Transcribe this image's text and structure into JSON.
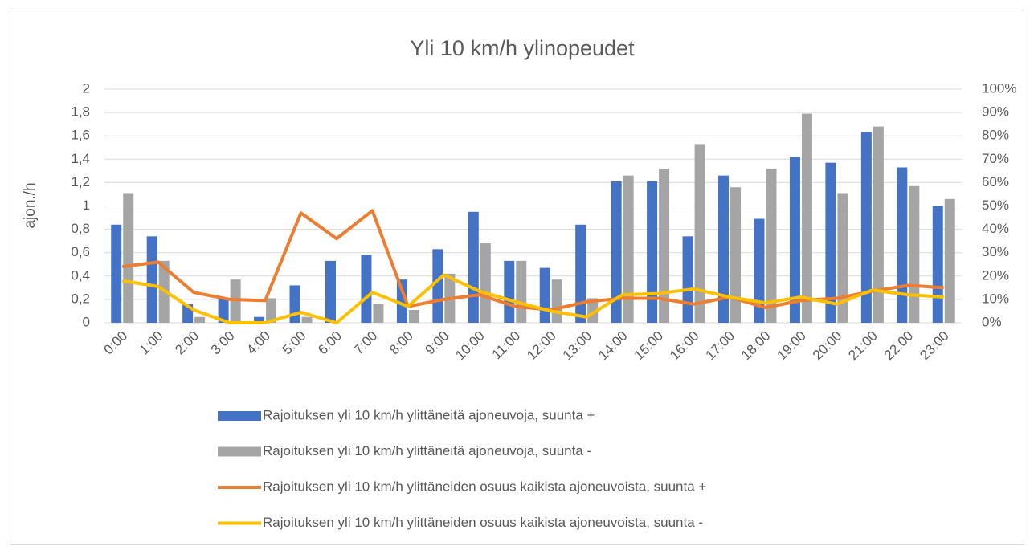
{
  "chart_data": {
    "type": "bar",
    "title": "Yli 10 km/h ylinopeudet",
    "y_label": "ajon./h",
    "categories": [
      "0:00",
      "1:00",
      "2:00",
      "3:00",
      "4:00",
      "5:00",
      "6:00",
      "7:00",
      "8:00",
      "9:00",
      "10:00",
      "11:00",
      "12:00",
      "13:00",
      "14:00",
      "15:00",
      "16:00",
      "17:00",
      "18:00",
      "19:00",
      "20:00",
      "21:00",
      "22:00",
      "23:00"
    ],
    "series": [
      {
        "name": "Rajoituksen yli 10 km/h ylittäneitä ajoneuvoja, suunta +",
        "type": "bar",
        "color": "#4472c4",
        "values": [
          0.84,
          0.74,
          0.16,
          0.21,
          0.05,
          0.32,
          0.53,
          0.58,
          0.37,
          0.63,
          0.95,
          0.53,
          0.47,
          0.84,
          1.21,
          1.21,
          0.74,
          1.26,
          0.89,
          1.42,
          1.37,
          1.63,
          1.33,
          1.0
        ]
      },
      {
        "name": "Rajoituksen yli 10 km/h ylittäneitä ajoneuvoja, suunta -",
        "type": "bar",
        "color": "#a5a5a5",
        "values": [
          1.11,
          0.53,
          0.05,
          0.37,
          0.21,
          0.05,
          0,
          0.16,
          0.11,
          0.42,
          0.68,
          0.53,
          0.37,
          0.21,
          1.26,
          1.32,
          1.53,
          1.16,
          1.32,
          1.79,
          1.11,
          1.68,
          1.17,
          1.06
        ]
      },
      {
        "name": "Rajoituksen yli 10 km/h ylittäneiden osuus kaikista ajoneuvoista, suunta +",
        "type": "line",
        "axis": "y2",
        "color": "#ed7d31",
        "values": [
          24,
          26,
          13,
          10,
          9.5,
          47,
          36,
          48,
          7,
          10,
          12,
          7,
          5.5,
          9,
          10.5,
          10.5,
          8,
          11,
          6.5,
          9.5,
          10.5,
          13.5,
          16,
          15
        ]
      },
      {
        "name": "Rajoituksen yli 10 km/h ylittäneiden osuus kaikista ajoneuvoista, suunta -",
        "type": "line",
        "axis": "y2",
        "color": "#ffc000",
        "values": [
          18,
          15.5,
          5.5,
          0,
          0,
          4.5,
          0,
          13,
          7,
          20.5,
          13.5,
          9,
          5,
          2.5,
          12,
          12.5,
          14.5,
          11,
          8.5,
          11,
          8,
          14,
          12,
          11
        ]
      }
    ],
    "ylim": [
      0,
      2
    ],
    "yticks": [
      0,
      {
        "value": 0.2,
        "label": "0,2"
      },
      {
        "value": 0.4,
        "label": "0,4"
      },
      {
        "value": 0.6,
        "label": "0,6"
      },
      {
        "value": 0.8,
        "label": "0,8"
      },
      1,
      {
        "value": 1.2,
        "label": "1,2"
      },
      {
        "value": 1.4,
        "label": "1,4"
      },
      {
        "value": 1.6,
        "label": "1,6"
      },
      {
        "value": 1.8,
        "label": "1,8"
      },
      2
    ],
    "y2lim": [
      0,
      100
    ],
    "y2ticks": [
      {
        "value": 0,
        "label": "0%"
      },
      {
        "value": 10,
        "label": "10%"
      },
      {
        "value": 20,
        "label": "20%"
      },
      {
        "value": 30,
        "label": "30%"
      },
      {
        "value": 40,
        "label": "40%"
      },
      {
        "value": 50,
        "label": "50%"
      },
      {
        "value": 60,
        "label": "60%"
      },
      {
        "value": 70,
        "label": "70%"
      },
      {
        "value": 80,
        "label": "80%"
      },
      {
        "value": 90,
        "label": "90%"
      },
      {
        "value": 100,
        "label": "100%"
      }
    ],
    "grid": true,
    "legend": "bottom"
  }
}
